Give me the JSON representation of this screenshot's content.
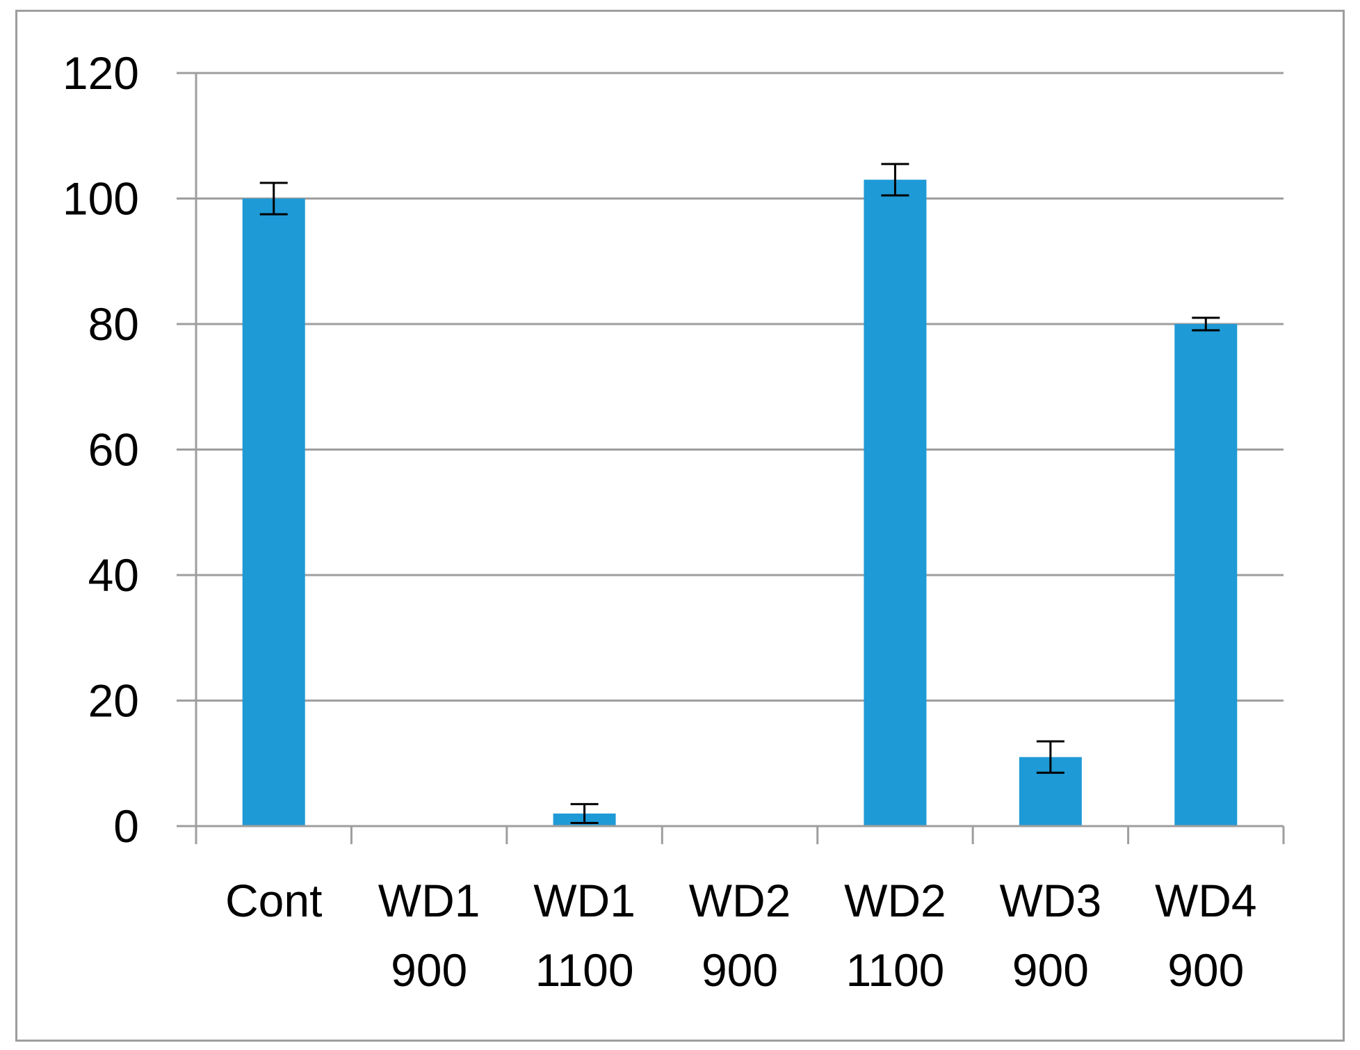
{
  "chart_data": {
    "type": "bar",
    "categories": [
      [
        "Cont"
      ],
      [
        "WD1",
        "900"
      ],
      [
        "WD1",
        "1100"
      ],
      [
        "WD2",
        "900"
      ],
      [
        "WD2",
        "1100"
      ],
      [
        "WD3",
        "900"
      ],
      [
        "WD4",
        "900"
      ]
    ],
    "values": [
      100,
      0,
      2,
      0,
      103,
      11,
      80
    ],
    "error": [
      2.5,
      0,
      1.5,
      0,
      2.5,
      2.5,
      1
    ],
    "ylim": [
      0,
      120
    ],
    "yticks": [
      0,
      20,
      40,
      60,
      80,
      100,
      120
    ],
    "title": "",
    "xlabel": "",
    "ylabel": "",
    "grid": true,
    "legend": "none"
  },
  "colors": {
    "bar": "#1e9ad6",
    "grid": "#9e9e9e",
    "axis": "#9e9e9e",
    "error_bar": "#000000",
    "frame": "#9e9e9e"
  }
}
